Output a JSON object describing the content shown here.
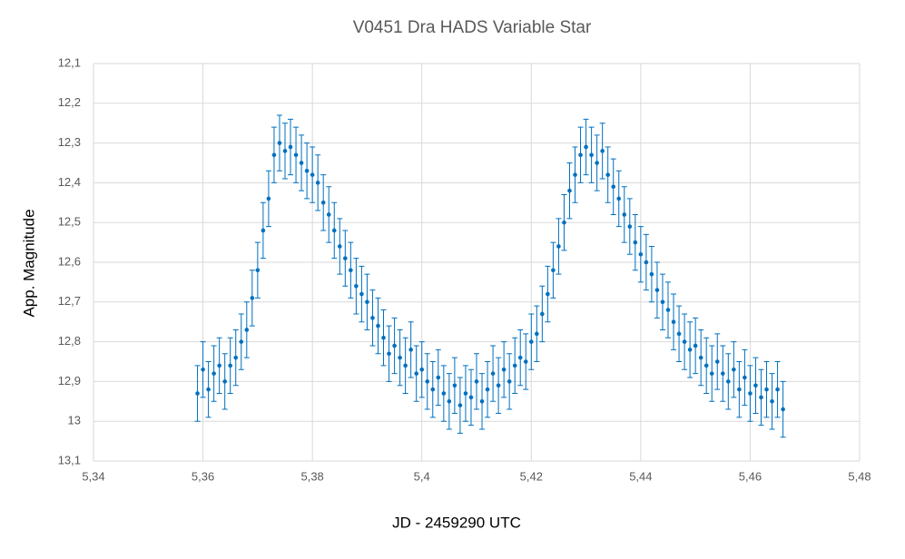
{
  "chart_data": {
    "type": "scatter",
    "title": "V0451 Dra   HADS Variable Star",
    "x_label": "JD - 2459290 UTC",
    "y_label": "App. Magnitude",
    "xlim": [
      5.34,
      5.48
    ],
    "ylim": [
      12.1,
      13.1
    ],
    "y_inverted": true,
    "grid": true,
    "xticks": [
      {
        "value": 5.34,
        "label": "5,34"
      },
      {
        "value": 5.36,
        "label": "5,36"
      },
      {
        "value": 5.38,
        "label": "5,38"
      },
      {
        "value": 5.4,
        "label": "5,4"
      },
      {
        "value": 5.42,
        "label": "5,42"
      },
      {
        "value": 5.44,
        "label": "5,44"
      },
      {
        "value": 5.46,
        "label": "5,46"
      },
      {
        "value": 5.48,
        "label": "5,48"
      }
    ],
    "yticks": [
      {
        "value": 12.1,
        "label": "12,1"
      },
      {
        "value": 12.2,
        "label": "12,2"
      },
      {
        "value": 12.3,
        "label": "12,3"
      },
      {
        "value": 12.4,
        "label": "12,4"
      },
      {
        "value": 12.5,
        "label": "12,5"
      },
      {
        "value": 12.6,
        "label": "12,6"
      },
      {
        "value": 12.7,
        "label": "12,7"
      },
      {
        "value": 12.8,
        "label": "12,8"
      },
      {
        "value": 12.9,
        "label": "12,9"
      },
      13,
      {
        "value": 13.1,
        "label": "13,1"
      }
    ],
    "series": [
      {
        "color": "#0070c0",
        "yerr": 0.07,
        "x": [
          5.359,
          5.36,
          5.361,
          5.362,
          5.363,
          5.364,
          5.365,
          5.366,
          5.367,
          5.368,
          5.369,
          5.37,
          5.371,
          5.372,
          5.373,
          5.374,
          5.375,
          5.376,
          5.377,
          5.378,
          5.379,
          5.38,
          5.381,
          5.382,
          5.383,
          5.384,
          5.385,
          5.386,
          5.387,
          5.388,
          5.389,
          5.39,
          5.391,
          5.392,
          5.393,
          5.394,
          5.395,
          5.396,
          5.397,
          5.398,
          5.399,
          5.4,
          5.401,
          5.402,
          5.403,
          5.404,
          5.405,
          5.406,
          5.407,
          5.408,
          5.409,
          5.41,
          5.411,
          5.412,
          5.413,
          5.414,
          5.415,
          5.416,
          5.417,
          5.418,
          5.419,
          5.42,
          5.421,
          5.422,
          5.423,
          5.424,
          5.425,
          5.426,
          5.427,
          5.428,
          5.429,
          5.43,
          5.431,
          5.432,
          5.433,
          5.434,
          5.435,
          5.436,
          5.437,
          5.438,
          5.439,
          5.44,
          5.441,
          5.442,
          5.443,
          5.444,
          5.445,
          5.446,
          5.447,
          5.448,
          5.449,
          5.45,
          5.451,
          5.452,
          5.453,
          5.454,
          5.455,
          5.456,
          5.457,
          5.458,
          5.459,
          5.46,
          5.461,
          5.462,
          5.463,
          5.464,
          5.465,
          5.466
        ],
        "y": [
          12.93,
          12.87,
          12.92,
          12.88,
          12.86,
          12.9,
          12.86,
          12.84,
          12.8,
          12.77,
          12.69,
          12.62,
          12.52,
          12.44,
          12.33,
          12.3,
          12.32,
          12.31,
          12.33,
          12.35,
          12.37,
          12.38,
          12.4,
          12.45,
          12.48,
          12.52,
          12.56,
          12.59,
          12.62,
          12.66,
          12.68,
          12.7,
          12.74,
          12.76,
          12.79,
          12.83,
          12.81,
          12.84,
          12.86,
          12.82,
          12.88,
          12.87,
          12.9,
          12.92,
          12.89,
          12.93,
          12.95,
          12.91,
          12.96,
          12.93,
          12.94,
          12.9,
          12.95,
          12.92,
          12.88,
          12.91,
          12.87,
          12.9,
          12.86,
          12.84,
          12.85,
          12.8,
          12.78,
          12.73,
          12.68,
          12.62,
          12.56,
          12.5,
          12.42,
          12.38,
          12.33,
          12.31,
          12.33,
          12.35,
          12.32,
          12.38,
          12.41,
          12.44,
          12.48,
          12.51,
          12.55,
          12.58,
          12.6,
          12.63,
          12.67,
          12.7,
          12.72,
          12.75,
          12.78,
          12.8,
          12.82,
          12.81,
          12.84,
          12.86,
          12.88,
          12.85,
          12.88,
          12.9,
          12.87,
          12.92,
          12.89,
          12.93,
          12.91,
          12.94,
          12.92,
          12.95,
          12.92,
          12.97
        ]
      }
    ]
  }
}
